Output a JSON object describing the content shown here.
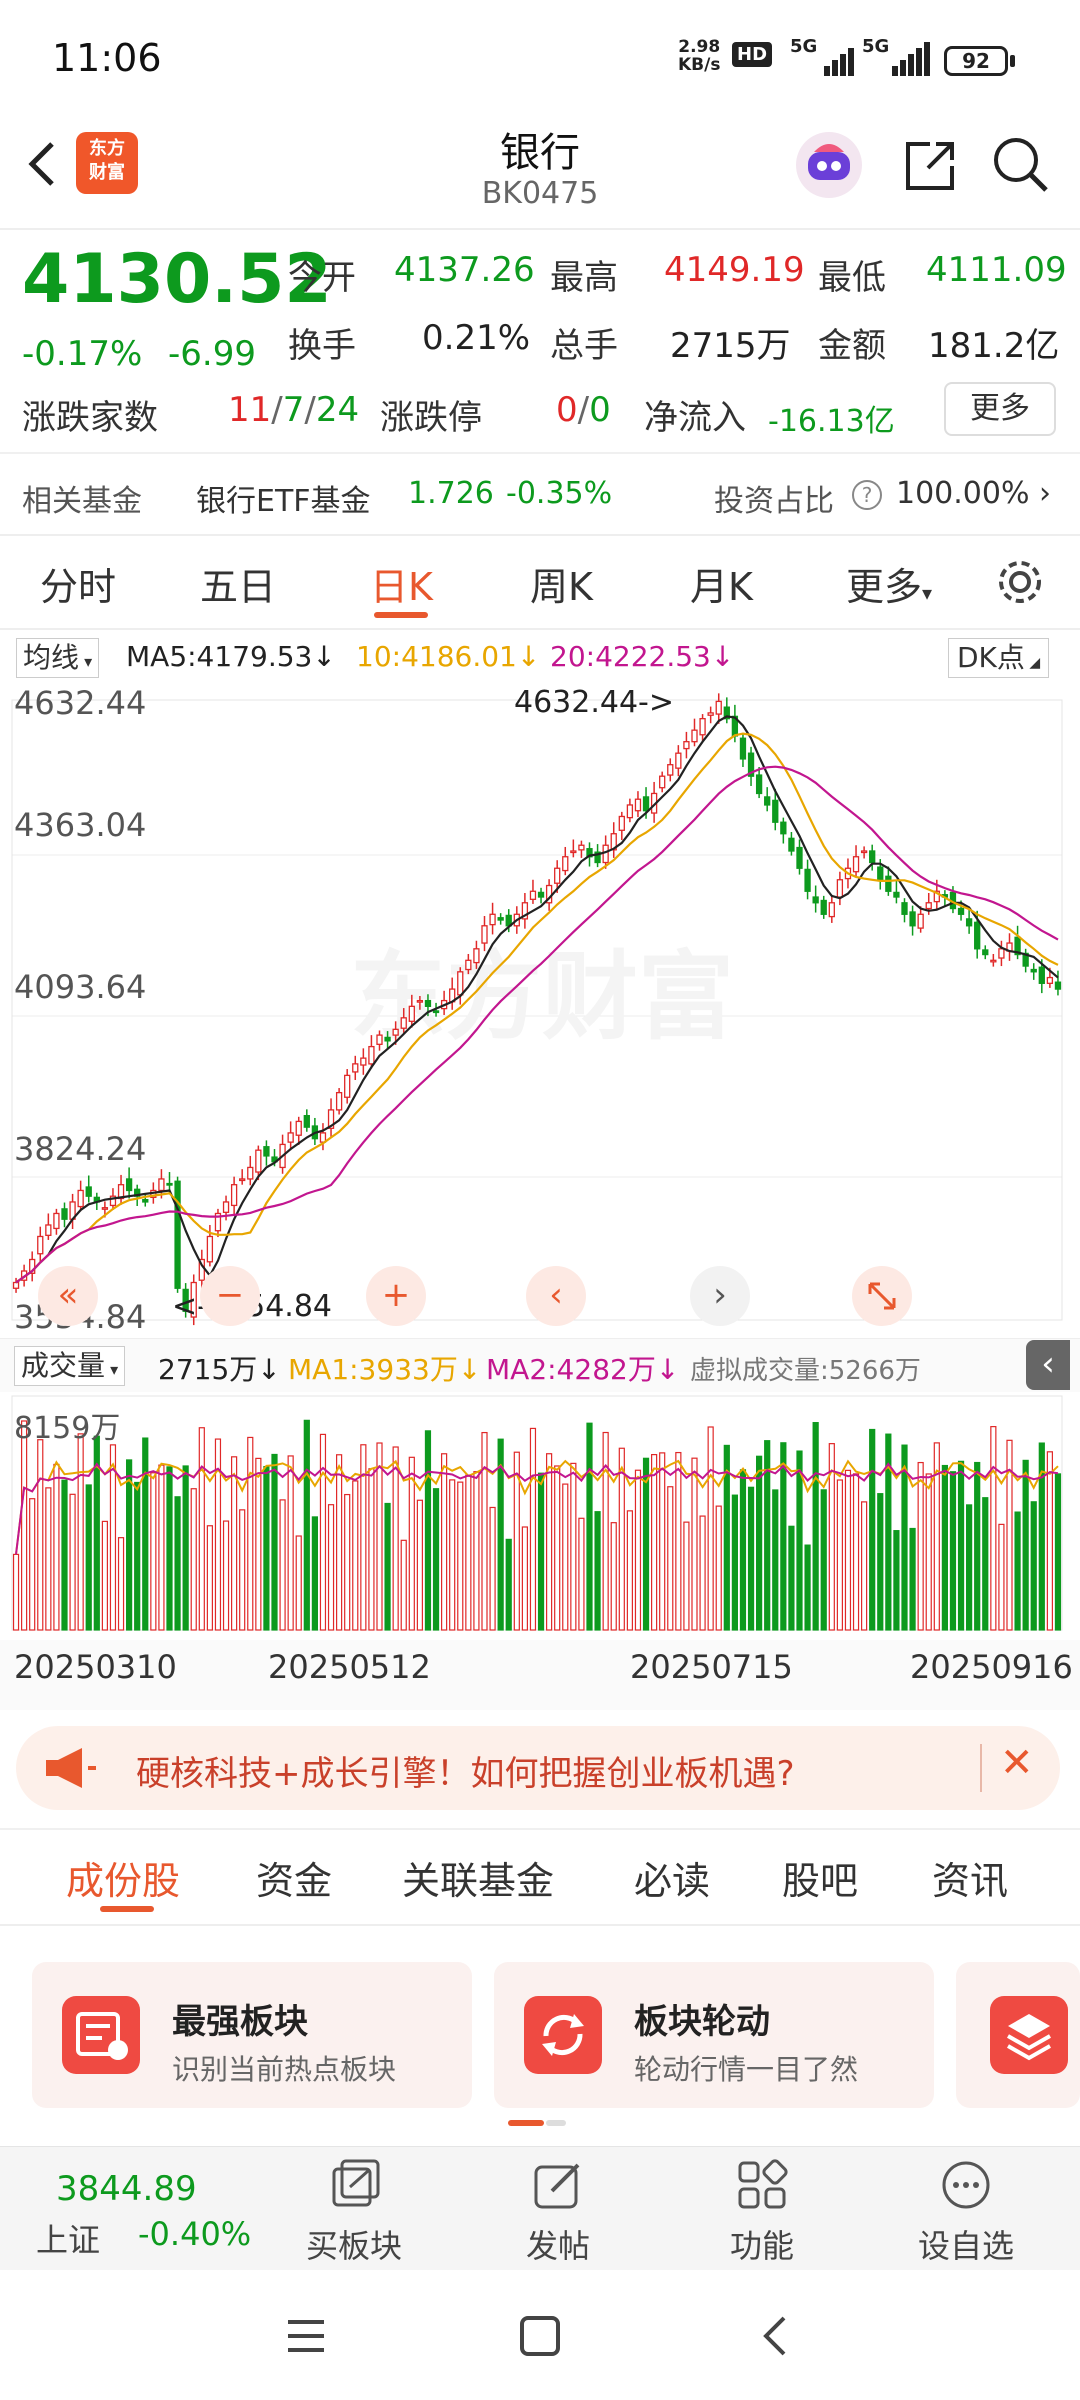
{
  "status_bar": {
    "time": "11:06",
    "net_speed_value": "2.98",
    "net_speed_unit": "KB/s",
    "hd_badge": "HD",
    "sig1": "5G",
    "sig2": "5G",
    "battery": "92"
  },
  "header": {
    "title": "银行",
    "code": "BK0475",
    "logo_text": "东方财富"
  },
  "quote": {
    "price": "4130.52",
    "change_pct": "-0.17%",
    "change_val": "-6.99",
    "open_label": "今开",
    "open": "4137.26",
    "high_label": "最高",
    "high": "4149.19",
    "low_label": "最低",
    "low": "4111.09",
    "turnover_label": "换手",
    "turnover": "0.21%",
    "volume_label": "总手",
    "volume": "2715万",
    "amount_label": "金额",
    "amount": "181.2亿",
    "breadth_label": "涨跌家数",
    "breadth_up": "11",
    "breadth_down": "7",
    "breadth_flat": "24",
    "limit_label": "涨跌停",
    "limit_up": "0",
    "limit_down": "0",
    "netflow_label": "净流入",
    "netflow": "-16.13亿",
    "more_button": "更多"
  },
  "fund_row": {
    "label": "相关基金",
    "fund_name": "银行ETF基金",
    "fund_price": "1.726",
    "fund_change": "-0.35%",
    "ratio_label": "投资占比",
    "ratio_value": "100.00%"
  },
  "period_tabs": [
    {
      "label": "分时"
    },
    {
      "label": "五日"
    },
    {
      "label": "日K"
    },
    {
      "label": "周K"
    },
    {
      "label": "月K"
    },
    {
      "label": "更多"
    }
  ],
  "ma_bar": {
    "selector": "均线",
    "ma5": "MA5:4179.53",
    "ma10": "10:4186.01",
    "ma20": "20:4222.53",
    "dk_button": "DK点"
  },
  "chart": {
    "y_labels": [
      "4632.44",
      "4363.04",
      "4093.64",
      "3824.24",
      "3554.84"
    ],
    "max_annotation": "4632.44->",
    "min_annotation": "<-3554.84",
    "watermark": "东方财富"
  },
  "vol_bar": {
    "selector": "成交量",
    "vol": "2715万",
    "ma1": "MA1:3933万",
    "ma2": "MA2:4282万",
    "virtual": "虚拟成交量:5266万",
    "max_label": "8159万"
  },
  "x_labels": [
    "20250310",
    "20250512",
    "20250715",
    "20250916"
  ],
  "banner": {
    "text": "硬核科技+成长引擎！如何把握创业板机遇?"
  },
  "bottom_tabs": [
    {
      "label": "成份股"
    },
    {
      "label": "资金"
    },
    {
      "label": "关联基金"
    },
    {
      "label": "必读"
    },
    {
      "label": "股吧"
    },
    {
      "label": "资讯"
    }
  ],
  "cards": [
    {
      "title": "最强板块",
      "subtitle": "识别当前热点板块"
    },
    {
      "title": "板块轮动",
      "subtitle": "轮动行情一目了然"
    }
  ],
  "bottom_nav": {
    "index_value": "3844.89",
    "index_name": "上证",
    "index_change": "-0.40%",
    "items": [
      {
        "label": "买板块"
      },
      {
        "label": "发帖"
      },
      {
        "label": "功能"
      },
      {
        "label": "设自选"
      }
    ]
  },
  "chart_data": {
    "type": "candlestick",
    "y_range": [
      3554.84,
      4632.44
    ],
    "x_ticks": [
      "20250310",
      "20250512",
      "20250715",
      "20250916"
    ],
    "max_price": 4632.44,
    "min_price": 3554.84,
    "last_close": 4130.52,
    "ma5_last": 4179.53,
    "ma10_last": 4186.01,
    "ma20_last": 4222.53,
    "close_series": [
      3620,
      3640,
      3660,
      3700,
      3720,
      3740,
      3730,
      3760,
      3780,
      3770,
      3760,
      3750,
      3770,
      3790,
      3780,
      3770,
      3760,
      3780,
      3800,
      3790,
      3610,
      3570,
      3620,
      3660,
      3700,
      3740,
      3760,
      3790,
      3800,
      3820,
      3850,
      3840,
      3830,
      3860,
      3880,
      3900,
      3890,
      3870,
      3880,
      3920,
      3950,
      3980,
      4000,
      4010,
      4030,
      4050,
      4040,
      4060,
      4080,
      4100,
      4110,
      4100,
      4090,
      4110,
      4130,
      4160,
      4180,
      4200,
      4240,
      4260,
      4250,
      4240,
      4260,
      4280,
      4300,
      4290,
      4310,
      4340,
      4360,
      4370,
      4380,
      4360,
      4350,
      4380,
      4400,
      4430,
      4450,
      4460,
      4440,
      4470,
      4500,
      4520,
      4540,
      4560,
      4580,
      4600,
      4610,
      4630,
      4600,
      4570,
      4530,
      4500,
      4470,
      4450,
      4420,
      4400,
      4370,
      4340,
      4300,
      4280,
      4260,
      4280,
      4320,
      4340,
      4360,
      4370,
      4350,
      4320,
      4300,
      4290,
      4260,
      4240,
      4260,
      4280,
      4300,
      4290,
      4270,
      4260,
      4240,
      4200,
      4190,
      4180,
      4200,
      4210,
      4190,
      4170,
      4160,
      4140,
      4150,
      4130
    ]
  }
}
